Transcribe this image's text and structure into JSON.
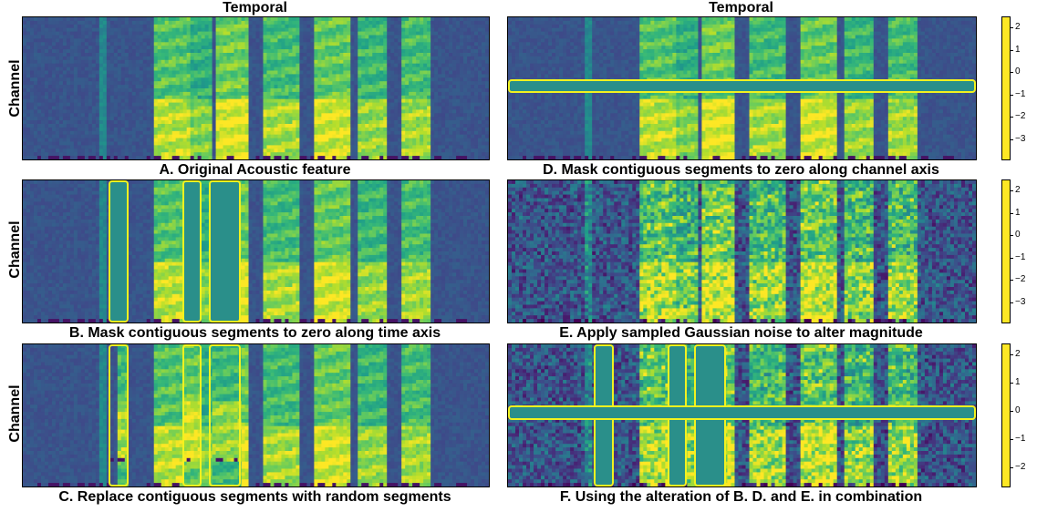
{
  "titles": {
    "left": "Temporal",
    "right": "Temporal"
  },
  "ylabel": "Channel",
  "captions": {
    "a": "A. Original Acoustic feature",
    "b": "B. Mask contiguous segments to zero along time axis",
    "c": "C. Replace contiguous segments with random segments",
    "d": "D. Mask contiguous segments to zero along channel axis",
    "e": "E. Apply sampled Gaussian noise to alter magnitude",
    "f": "F. Using the alteration of B. D. and E. in combination"
  },
  "colorbars": [
    {
      "ticks": [
        "2",
        "1",
        "0",
        "−1",
        "−2",
        "−3"
      ]
    },
    {
      "ticks": [
        "2",
        "1",
        "0",
        "−1",
        "−2",
        "−3"
      ]
    },
    {
      "ticks": [
        "2",
        "1",
        "0",
        "−1",
        "−2"
      ]
    }
  ],
  "colors": {
    "highlight": "#f2f21f",
    "masked": "#2a8f8a",
    "colormap": "viridis"
  }
}
